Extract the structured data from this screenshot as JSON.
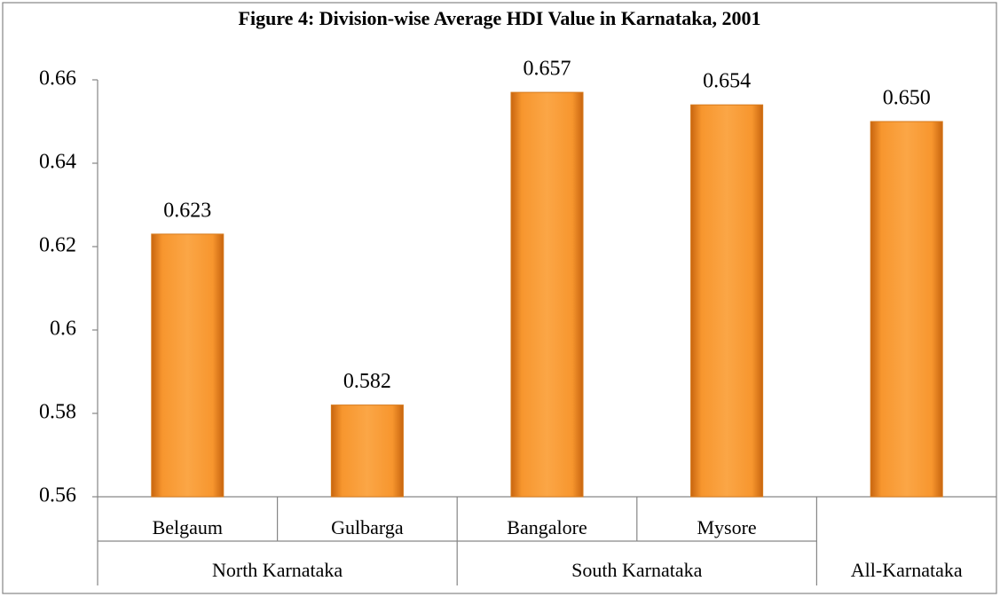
{
  "chart_data": {
    "type": "bar",
    "title": "Figure 4: Division-wise Average HDI Value in Karnataka, 2001",
    "categories": [
      "Belgaum",
      "Gulbarga",
      "Bangalore",
      "Mysore",
      null
    ],
    "groups": [
      {
        "name": "North Karnataka",
        "size": 2
      },
      {
        "name": "South Karnataka",
        "size": 2
      },
      {
        "name": "All-Karnataka",
        "size": 1
      }
    ],
    "values": [
      0.623,
      0.582,
      0.657,
      0.654,
      0.65
    ],
    "value_labels": [
      "0.623",
      "0.582",
      "0.657",
      "0.654",
      "0.650"
    ],
    "color": "#f7962e",
    "ylim": [
      0.56,
      0.66
    ],
    "yticks": [
      0.56,
      0.58,
      0.6,
      0.62,
      0.64,
      0.66
    ],
    "grid": false
  }
}
